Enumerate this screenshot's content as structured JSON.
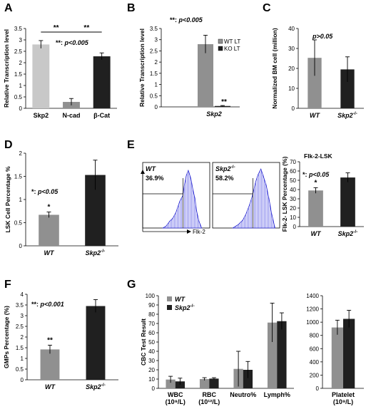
{
  "panel_letters": {
    "A": "A",
    "B": "B",
    "C": "C",
    "D": "D",
    "E": "E",
    "F": "F",
    "G": "G"
  },
  "colors": {
    "light_gray": "#c8c8c8",
    "gray": "#909090",
    "dark": "#202020",
    "flow_fill": "#3a3ae0"
  },
  "chart_data": [
    {
      "id": "A",
      "type": "bar",
      "categories": [
        "Skp2",
        "N-cad",
        "β-Cat"
      ],
      "values": [
        2.8,
        0.28,
        2.28
      ],
      "errors": [
        0.17,
        0.15,
        0.15
      ],
      "colors": [
        "#c8c8c8",
        "#909090",
        "#202020"
      ],
      "ylabel": "Relative Transcription level",
      "ylim": [
        0,
        3.5
      ],
      "yticks": [
        "0",
        "0.5",
        "1",
        "1.5",
        "2",
        "2.5",
        "3",
        "3.5"
      ],
      "sig_brackets": [
        {
          "from": 0,
          "to": 1,
          "label": "**"
        },
        {
          "from": 1,
          "to": 2,
          "label": "**"
        }
      ],
      "annotation_prefix": "**: ",
      "annotation_p": "p<0.005"
    },
    {
      "id": "B",
      "type": "bar",
      "categories": [
        "Skp2"
      ],
      "series": [
        {
          "name": "WT LT",
          "values": [
            2.8
          ],
          "errors": [
            0.4
          ],
          "color": "#909090"
        },
        {
          "name": "KO LT",
          "values": [
            0.04
          ],
          "errors": [
            0.02
          ],
          "color": "#202020"
        }
      ],
      "ylabel": "Relative Transcription level",
      "ylim": [
        0,
        3.5
      ],
      "yticks": [
        "0",
        "0.5",
        "1",
        "1.5",
        "2",
        "2.5",
        "3",
        "3.5"
      ],
      "bar_marks": [
        "",
        "**"
      ],
      "annotation_prefix": "**: ",
      "annotation_p": "p<0.005",
      "legend": {
        "position": "top-right"
      }
    },
    {
      "id": "C",
      "type": "bar",
      "categories": [
        "WT",
        "Skp2"
      ],
      "category_sup": [
        "",
        "-/-"
      ],
      "values": [
        25.3,
        19.5
      ],
      "errors": [
        9,
        6.3
      ],
      "colors": [
        "#909090",
        "#202020"
      ],
      "ylabel": "Normalized BM cell (million)",
      "ylim": [
        0,
        40
      ],
      "yticks": [
        "0",
        "10",
        "20",
        "30",
        "40"
      ],
      "annotation_p": "p>0.05"
    },
    {
      "id": "D",
      "type": "bar",
      "categories": [
        "WT",
        "Skp2"
      ],
      "category_sup": [
        "",
        "-/-"
      ],
      "values": [
        0.67,
        1.53
      ],
      "errors": [
        0.06,
        0.32
      ],
      "colors": [
        "#909090",
        "#202020"
      ],
      "ylabel": "LSK Cell Percentage %",
      "ylim": [
        0,
        2
      ],
      "yticks": [
        "0",
        "0.5",
        "1",
        "1.5",
        "2"
      ],
      "bar_marks": [
        "*",
        ""
      ],
      "annotation_prefix": "*: ",
      "annotation_p": "p<0.05"
    },
    {
      "id": "E",
      "type": "bar",
      "title": "Flk-2-LSK",
      "categories": [
        "WT",
        "Skp2"
      ],
      "category_sup": [
        "",
        "-/-"
      ],
      "values": [
        39,
        53
      ],
      "errors": [
        3,
        5
      ],
      "colors": [
        "#909090",
        "#202020"
      ],
      "ylabel": "Flk-2- LSK Percentage (%)",
      "ylim": [
        0,
        70
      ],
      "yticks": [
        "0",
        "10",
        "20",
        "30",
        "40",
        "50",
        "60",
        "70"
      ],
      "bar_marks": [
        "*",
        ""
      ],
      "annotation_prefix": "*: ",
      "annotation_p": "p<0.05"
    },
    {
      "id": "E-flow",
      "type": "histogram",
      "xlabel": "Flk-2",
      "plots": [
        {
          "label": "WT",
          "label_sup": "",
          "percent": "36.9%"
        },
        {
          "label": "Skp2",
          "label_sup": "-/-",
          "percent": "58.2%"
        }
      ]
    },
    {
      "id": "F",
      "type": "bar",
      "categories": [
        "WT",
        "Skp2"
      ],
      "category_sup": [
        "",
        "-/-"
      ],
      "values": [
        1.42,
        3.45
      ],
      "errors": [
        0.2,
        0.3
      ],
      "colors": [
        "#909090",
        "#202020"
      ],
      "ylabel": "GMPs Percentage (%)",
      "ylim": [
        0,
        4
      ],
      "yticks": [
        "0",
        "0.5",
        "1",
        "1.5",
        "2",
        "2.5",
        "3",
        "3.5",
        "4"
      ],
      "bar_marks": [
        "**",
        ""
      ],
      "annotation_prefix": "**: ",
      "annotation_p": "p<0.001"
    },
    {
      "id": "G",
      "type": "bar",
      "categories": [
        "WBC",
        "RBC",
        "Neutro%",
        "Lymph%"
      ],
      "category_sub": [
        "(10⁹/L)",
        "(10¹²/L)",
        "",
        ""
      ],
      "series": [
        {
          "name": "WT",
          "values": [
            9.5,
            10,
            21,
            71
          ],
          "errors": [
            3.5,
            1.5,
            19,
            21
          ],
          "color": "#909090"
        },
        {
          "name": "Skp2",
          "name_sup": "-/-",
          "values": [
            7.5,
            10.5,
            20,
            72.5
          ],
          "errors": [
            3.5,
            1,
            9,
            9
          ],
          "color": "#202020"
        }
      ],
      "ylabel": "CBC Test Result",
      "ylim": [
        0,
        100
      ],
      "yticks": [
        "0",
        "10",
        "20",
        "30",
        "40",
        "50",
        "60",
        "70",
        "80",
        "90",
        "100"
      ],
      "legend": {
        "position": "top-left"
      }
    },
    {
      "id": "G-platelet",
      "type": "bar",
      "categories": [
        "Platelet"
      ],
      "category_sub": [
        "(10⁹/L)"
      ],
      "series": [
        {
          "name": "WT",
          "values": [
            920
          ],
          "errors": [
            110
          ],
          "color": "#909090"
        },
        {
          "name": "Skp2",
          "values": [
            1050
          ],
          "errors": [
            130
          ],
          "color": "#202020"
        }
      ],
      "ylim": [
        0,
        1400
      ],
      "yticks": [
        "0",
        "200",
        "400",
        "600",
        "800",
        "1000",
        "1200",
        "1400"
      ]
    }
  ]
}
